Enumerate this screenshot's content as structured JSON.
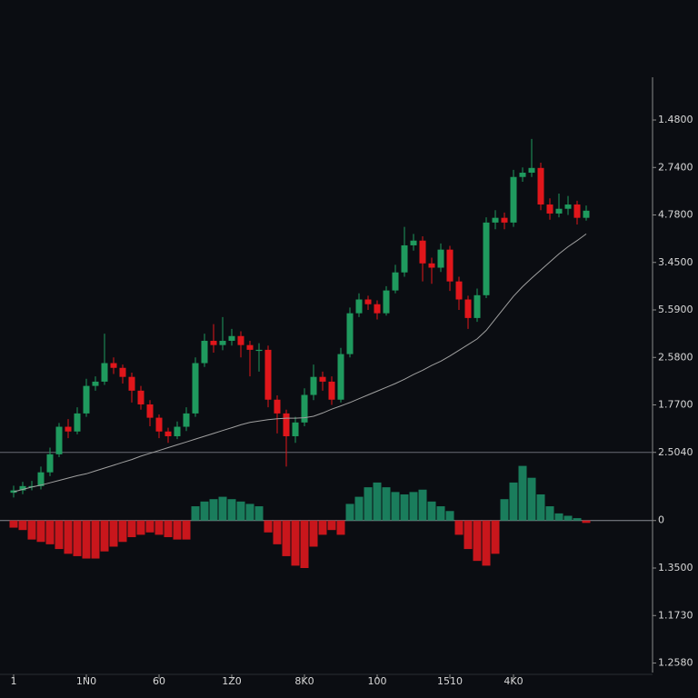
{
  "chart_data": [
    {
      "type": "candlestick",
      "open": [
        -0.85,
        -0.8,
        -0.71,
        -0.71,
        -0.42,
        -0.04,
        0.54,
        0.44,
        0.82,
        1.4,
        1.49,
        1.88,
        1.78,
        1.59,
        1.3,
        1.01,
        0.73,
        0.44,
        0.34,
        0.54,
        0.82,
        1.88,
        2.35,
        2.26,
        2.35,
        2.45,
        2.26,
        2.16,
        2.16,
        1.11,
        0.82,
        0.34,
        0.63,
        1.21,
        1.59,
        1.49,
        1.11,
        2.07,
        2.93,
        3.22,
        3.12,
        2.93,
        3.41,
        3.79,
        4.36,
        4.46,
        3.98,
        3.89,
        4.27,
        3.6,
        3.22,
        2.83,
        3.31,
        4.84,
        4.94,
        4.84,
        5.8,
        5.89,
        5.99,
        5.22,
        5.03,
        5.13,
        5.22,
        4.94
      ],
      "high": [
        -0.7,
        -0.62,
        -0.6,
        -0.3,
        0.1,
        0.62,
        0.7,
        0.95,
        1.55,
        1.6,
        2.5,
        2.0,
        1.85,
        1.68,
        1.4,
        1.1,
        0.8,
        0.52,
        0.65,
        0.95,
        2.0,
        2.5,
        2.7,
        2.85,
        2.6,
        2.55,
        2.35,
        2.3,
        2.25,
        1.2,
        0.9,
        0.75,
        1.35,
        1.85,
        1.7,
        1.6,
        2.2,
        3.05,
        3.35,
        3.3,
        3.2,
        3.5,
        3.95,
        4.75,
        4.6,
        4.55,
        4.1,
        4.4,
        4.35,
        3.7,
        3.3,
        3.45,
        4.95,
        5.1,
        5.05,
        5.95,
        6.0,
        6.6,
        6.1,
        5.35,
        5.45,
        5.4,
        5.3,
        5.2
      ],
      "low": [
        -0.95,
        -0.88,
        -0.8,
        -0.78,
        -0.5,
        -0.1,
        0.3,
        0.38,
        0.75,
        1.3,
        1.42,
        1.65,
        1.45,
        1.05,
        0.9,
        0.55,
        0.3,
        0.2,
        0.28,
        0.45,
        0.75,
        1.8,
        2.1,
        2.15,
        2.25,
        2.0,
        1.6,
        1.7,
        0.95,
        0.4,
        -0.3,
        0.2,
        0.55,
        1.1,
        1.3,
        1.0,
        1.05,
        2.0,
        2.85,
        3.0,
        2.8,
        2.88,
        3.35,
        3.7,
        4.25,
        3.6,
        3.55,
        3.8,
        3.4,
        3.0,
        2.6,
        2.75,
        3.25,
        4.7,
        4.7,
        4.75,
        5.7,
        5.8,
        5.1,
        4.9,
        4.95,
        5.0,
        4.8,
        4.88
      ],
      "close": [
        -0.8,
        -0.71,
        -0.71,
        -0.42,
        -0.04,
        0.54,
        0.44,
        0.82,
        1.4,
        1.49,
        1.88,
        1.78,
        1.59,
        1.3,
        1.01,
        0.73,
        0.44,
        0.34,
        0.54,
        0.82,
        1.88,
        2.35,
        2.26,
        2.35,
        2.45,
        2.26,
        2.16,
        2.16,
        1.11,
        0.82,
        0.34,
        0.63,
        1.21,
        1.59,
        1.49,
        1.11,
        2.07,
        2.93,
        3.22,
        3.12,
        2.93,
        3.41,
        3.79,
        4.36,
        4.46,
        3.98,
        3.89,
        4.27,
        3.6,
        3.22,
        2.83,
        3.31,
        4.84,
        4.94,
        4.84,
        5.8,
        5.89,
        5.99,
        5.22,
        5.03,
        5.13,
        5.22,
        4.94,
        5.09
      ],
      "up_color": "#1f9a5e",
      "down_color": "#e0161b",
      "line_values": [
        -0.83,
        -0.78,
        -0.73,
        -0.69,
        -0.64,
        -0.59,
        -0.54,
        -0.49,
        -0.45,
        -0.39,
        -0.33,
        -0.27,
        -0.21,
        -0.15,
        -0.08,
        -0.02,
        0.04,
        0.1,
        0.16,
        0.22,
        0.28,
        0.34,
        0.4,
        0.46,
        0.52,
        0.58,
        0.63,
        0.66,
        0.69,
        0.71,
        0.72,
        0.72,
        0.73,
        0.76,
        0.83,
        0.91,
        0.98,
        1.05,
        1.13,
        1.21,
        1.29,
        1.37,
        1.45,
        1.54,
        1.64,
        1.73,
        1.83,
        1.92,
        2.03,
        2.15,
        2.27,
        2.39,
        2.57,
        2.81,
        3.05,
        3.29,
        3.49,
        3.67,
        3.84,
        4.01,
        4.18,
        4.33,
        4.46,
        4.6
      ],
      "line_color": "#a0a0a0",
      "ylim": [
        -1,
        7.9
      ],
      "yticks": [
        {
          "value": 7,
          "label": "1.4800"
        },
        {
          "value": 6,
          "label": "2.7400"
        },
        {
          "value": 5,
          "label": "4.7800"
        },
        {
          "value": 4,
          "label": "3.4500"
        },
        {
          "value": 3,
          "label": "5.5900"
        },
        {
          "value": 2,
          "label": "2.5800"
        },
        {
          "value": 1,
          "label": "1.7700"
        },
        {
          "value": 0,
          "label": "2.5040"
        }
      ]
    },
    {
      "type": "bar",
      "categories": [
        "1",
        null,
        null,
        null,
        null,
        null,
        null,
        null,
        "1N0",
        null,
        null,
        null,
        null,
        null,
        null,
        null,
        "60",
        null,
        null,
        null,
        null,
        null,
        null,
        null,
        "1Z0",
        null,
        null,
        null,
        null,
        null,
        null,
        null,
        "8K0",
        null,
        null,
        null,
        null,
        null,
        null,
        null,
        "100",
        null,
        null,
        null,
        null,
        null,
        null,
        null,
        "1510",
        null,
        null,
        null,
        null,
        null,
        null,
        "4K0",
        null,
        null,
        null,
        null,
        null,
        null,
        null,
        null
      ],
      "values": [
        -0.15,
        -0.2,
        -0.4,
        -0.45,
        -0.5,
        -0.6,
        -0.7,
        -0.75,
        -0.8,
        -0.8,
        -0.65,
        -0.55,
        -0.45,
        -0.35,
        -0.3,
        -0.25,
        -0.3,
        -0.35,
        -0.4,
        -0.4,
        0.3,
        0.4,
        0.45,
        0.5,
        0.45,
        0.4,
        0.35,
        0.3,
        -0.25,
        -0.5,
        -0.75,
        -0.95,
        -1.0,
        -0.55,
        -0.3,
        -0.2,
        -0.3,
        0.35,
        0.5,
        0.7,
        0.8,
        0.7,
        0.6,
        0.55,
        0.6,
        0.65,
        0.4,
        0.3,
        0.2,
        -0.3,
        -0.6,
        -0.85,
        -0.95,
        -0.7,
        0.45,
        0.8,
        1.15,
        0.9,
        0.55,
        0.3,
        0.15,
        0.1,
        0.05,
        -0.05
      ],
      "positive_color": "#1a7d5c",
      "negative_color": "#c9161c",
      "ylim": [
        -3.2,
        1.2
      ],
      "yticks": [
        0,
        {
          "value": -1,
          "label": "1.3500"
        },
        {
          "value": -2,
          "label": "1.1730"
        },
        {
          "value": -3,
          "label": "1.2580"
        }
      ]
    }
  ]
}
